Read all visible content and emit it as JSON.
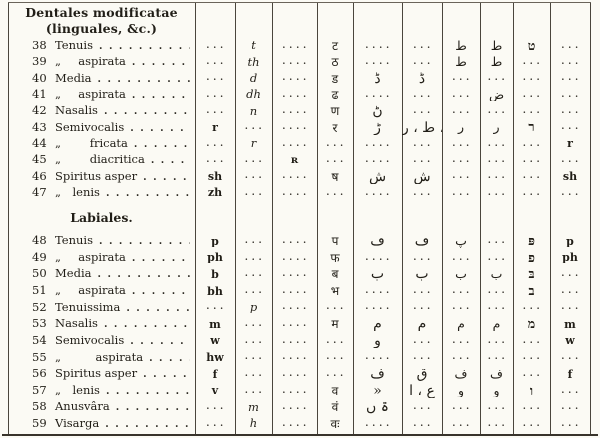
{
  "page": {
    "background_color": "#fbfaf4",
    "ink_color": "#211e17",
    "rule_color": "#4a453c"
  },
  "table": {
    "section1": {
      "title_line1": "Dentales modificatae",
      "title_line2": "(linguales, &c.)",
      "rows": [
        {
          "num": "38",
          "label": "Tenuis",
          "cells": [
            ". . .",
            "t",
            ". . . .",
            "ट",
            ". . . .",
            ". . .",
            "ط",
            "ط",
            "ט",
            ". . ."
          ]
        },
        {
          "num": "39",
          "label": "„  aspirata",
          "cells": [
            ". . .",
            "th",
            ". . . .",
            "ठ",
            ". . . .",
            ". . .",
            "ط",
            "ط",
            ". . .",
            ". . ."
          ]
        },
        {
          "num": "40",
          "label": "Media",
          "cells": [
            ". . .",
            "d",
            ". . . .",
            "ड",
            "ڈ",
            "ڈ",
            ". . .",
            ". . .",
            ". . .",
            ". . ."
          ]
        },
        {
          "num": "41",
          "label": "„  aspirata",
          "cells": [
            ". . .",
            "dh",
            ". . . .",
            "ढ",
            ". . . .",
            ". . .",
            ". . .",
            "ض",
            ". . .",
            ". . ."
          ]
        },
        {
          "num": "42",
          "label": "Nasalis",
          "cells": [
            ". . .",
            "n",
            ". . . .",
            "ण",
            "ڻ",
            ". . .",
            ". . .",
            ". . .",
            ". . .",
            ". . ."
          ]
        },
        {
          "num": "43",
          "label": "Semivocalis",
          "cells": [
            "r",
            ". . .",
            ". . . .",
            "र",
            "ڑ",
            "ا ، ط ، ر",
            "ر",
            "ر",
            "ר",
            ". . ."
          ]
        },
        {
          "num": "44",
          "label": "„   fricata",
          "cells": [
            ". . .",
            "r",
            ". . . .",
            ". . .",
            ". . . .",
            ". . .",
            ". . .",
            ". . .",
            ". . .",
            "r"
          ]
        },
        {
          "num": "45",
          "label": "„   diacritica",
          "cells": [
            ". . .",
            ". . .",
            "ʀ",
            ". . .",
            ". . . .",
            ". . .",
            ". . .",
            ". . .",
            ". . .",
            ". . ."
          ]
        },
        {
          "num": "46",
          "label": "Spiritus asper",
          "cells": [
            "sh",
            ". . .",
            ". . . .",
            "ष",
            "ش",
            "ش",
            ". . .",
            ". . .",
            ". . .",
            "sh"
          ]
        },
        {
          "num": "47",
          "label": "„ lenis",
          "cells": [
            "zh",
            ". . .",
            ". . . .",
            ". . .",
            ". . . .",
            ". . .",
            ". . .",
            ". . .",
            ". . .",
            ". . ."
          ]
        }
      ]
    },
    "section2": {
      "title": "Labiales.",
      "rows": [
        {
          "num": "48",
          "label": "Tenuis",
          "cells": [
            "p",
            ". . .",
            ". . . .",
            "प",
            "ڡ",
            "ڡ",
            "پ",
            ". . .",
            "פּ",
            "p"
          ]
        },
        {
          "num": "49",
          "label": "„  aspirata",
          "cells": [
            "ph",
            ". . .",
            ". . . .",
            "फ",
            ". . . .",
            ". . .",
            ". . .",
            ". . .",
            "פ",
            "ph"
          ]
        },
        {
          "num": "50",
          "label": "Media",
          "cells": [
            "b",
            ". . .",
            ". . . .",
            "ब",
            "ب",
            "ب",
            "ب",
            "ب",
            "בּ",
            ". . ."
          ]
        },
        {
          "num": "51",
          "label": "„  aspirata",
          "cells": [
            "bh",
            ". . .",
            ". . . .",
            "भ",
            ". . . .",
            ". . .",
            ". . .",
            ". . .",
            "ב",
            ". . ."
          ]
        },
        {
          "num": "52",
          "label": "Tenuissima",
          "cells": [
            ". . .",
            "p",
            ". . . .",
            ". . .",
            ". . . .",
            ". . .",
            ". . .",
            ". . .",
            ". . .",
            ". . ."
          ]
        },
        {
          "num": "53",
          "label": "Nasalis",
          "cells": [
            "m",
            ". . .",
            ". . . .",
            "म",
            "م",
            "م",
            "م",
            "م",
            "מ",
            "m"
          ]
        },
        {
          "num": "54",
          "label": "Semivocalis",
          "cells": [
            "w",
            ". . .",
            ". . . .",
            ". . .",
            "و",
            ". . .",
            ". . .",
            ". . .",
            ". . .",
            "w"
          ]
        },
        {
          "num": "55",
          "label": "„   aspirata",
          "cells": [
            "hw",
            ". . .",
            ". . . .",
            ". . .",
            ". . . .",
            ". . .",
            ". . .",
            ". . .",
            ". . .",
            ". . ."
          ]
        },
        {
          "num": "56",
          "label": "Spiritus asper",
          "cells": [
            "f",
            ". . .",
            ". . . .",
            ". . .",
            "ف",
            "ق",
            "ف",
            "ف",
            ". . .",
            "f"
          ]
        },
        {
          "num": "57",
          "label": "„ lenis",
          "cells": [
            "v",
            ". . .",
            ". . . .",
            "व",
            "»",
            "ع ، ا",
            "و",
            "و",
            "ו",
            ". . ."
          ]
        },
        {
          "num": "58",
          "label": "Anusvâra",
          "cells": [
            ". . .",
            "m",
            ". . . .",
            "वं",
            "ۃ ں",
            ". . .",
            ". . .",
            ". . .",
            ". . .",
            ". . ."
          ]
        },
        {
          "num": "59",
          "label": "Visarga",
          "cells": [
            ". . .",
            "h",
            ". . . .",
            "वः",
            ". . . .",
            ". . .",
            ". . .",
            ". . .",
            ". . .",
            ". . ."
          ]
        }
      ]
    }
  }
}
